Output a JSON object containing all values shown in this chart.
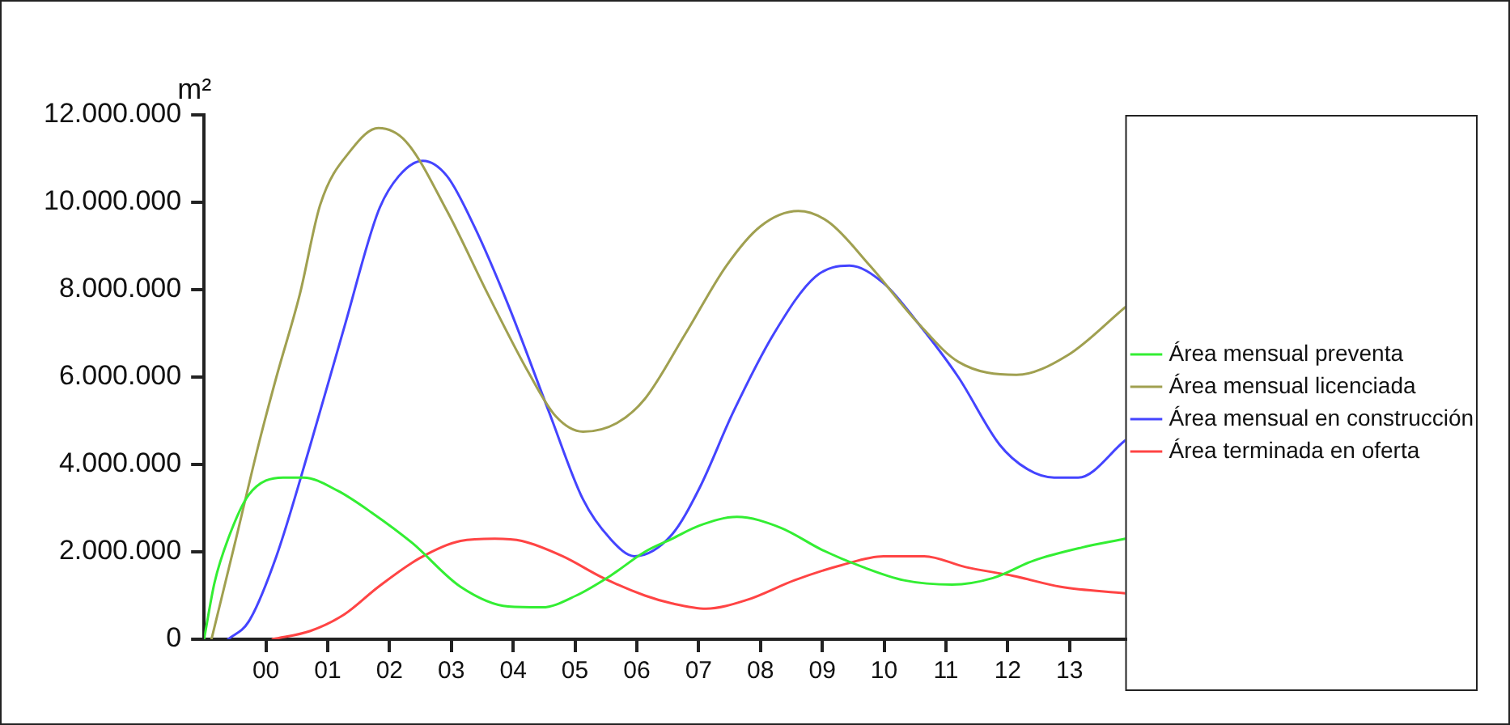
{
  "chart_data": {
    "type": "line",
    "ylabel": "m²",
    "xlim": [
      -1,
      13.9
    ],
    "ylim": [
      0,
      12000000
    ],
    "xticks": [
      {
        "value": 0,
        "label": "00"
      },
      {
        "value": 1,
        "label": "01"
      },
      {
        "value": 2,
        "label": "02"
      },
      {
        "value": 3,
        "label": "03"
      },
      {
        "value": 4,
        "label": "04"
      },
      {
        "value": 5,
        "label": "05"
      },
      {
        "value": 6,
        "label": "06"
      },
      {
        "value": 7,
        "label": "07"
      },
      {
        "value": 8,
        "label": "08"
      },
      {
        "value": 9,
        "label": "09"
      },
      {
        "value": 10,
        "label": "10"
      },
      {
        "value": 11,
        "label": "11"
      },
      {
        "value": 12,
        "label": "12"
      },
      {
        "value": 13,
        "label": "13"
      }
    ],
    "yticks": [
      0,
      {
        "value": 2000000,
        "label": "2.000.000"
      },
      {
        "value": 4000000,
        "label": "4.000.000"
      },
      {
        "value": 6000000,
        "label": "6.000.000"
      },
      {
        "value": 8000000,
        "label": "8.000.000"
      },
      {
        "value": 10000000,
        "label": "10.000.000"
      },
      {
        "value": 12000000,
        "label": "12.000.000"
      }
    ],
    "grid": false,
    "legend": "right",
    "marker": "none",
    "line_style": "solid",
    "series": [
      {
        "name": "Área mensual preventa",
        "color": "#33ee33",
        "x": [
          -1,
          -0.83,
          -0.61,
          -0.28,
          0.28,
          0.61,
          1.16,
          1.71,
          2.37,
          3.15,
          3.92,
          4.47,
          5.02,
          5.57,
          6.13,
          6.57,
          7.01,
          7.62,
          8.33,
          8.99,
          9.66,
          10.32,
          11.1,
          11.76,
          12.42,
          13.2,
          13.9
        ],
        "values": [
          0,
          1300000,
          2300000,
          3300000,
          3700000,
          3700000,
          3400000,
          2900000,
          2200000,
          1200000,
          750000,
          730000,
          1000000,
          1450000,
          2000000,
          2300000,
          2600000,
          2800000,
          2550000,
          2050000,
          1650000,
          1350000,
          1250000,
          1400000,
          1800000,
          2100000,
          2300000
        ]
      },
      {
        "name": "Área mensual licenciada",
        "color": "#a0a050",
        "x": [
          -0.88,
          -0.5,
          -0.11,
          0.17,
          0.55,
          0.88,
          1.38,
          1.82,
          2.26,
          2.93,
          3.59,
          4.25,
          4.69,
          5.13,
          5.68,
          6.13,
          6.79,
          7.45,
          8,
          8.61,
          9.1,
          9.77,
          10.54,
          11.2,
          12.14,
          12.97,
          13.9
        ],
        "values": [
          0,
          2200000,
          4500000,
          6000000,
          7900000,
          9950000,
          11200000,
          11700000,
          11400000,
          9800000,
          7900000,
          6100000,
          5100000,
          4750000,
          4950000,
          5500000,
          7000000,
          8550000,
          9450000,
          9800000,
          9550000,
          8550000,
          7250000,
          6350000,
          6050000,
          6500000,
          7600000
        ]
      },
      {
        "name": "Área mensual en construcción",
        "color": "#4444ff",
        "x": [
          -0.61,
          -0.28,
          0.17,
          0.72,
          1.27,
          1.82,
          2.15,
          2.54,
          2.93,
          3.37,
          3.92,
          4.58,
          5.13,
          5.57,
          5.96,
          6.57,
          7.01,
          7.56,
          8.22,
          8.89,
          9.44,
          9.99,
          10.54,
          11.2,
          11.87,
          12.31,
          12.75,
          13.14,
          13.9
        ],
        "values": [
          0,
          400000,
          1900000,
          4450000,
          7150000,
          9800000,
          10600000,
          10950000,
          10600000,
          9450000,
          7650000,
          5200000,
          3200000,
          2300000,
          1900000,
          2400000,
          3450000,
          5200000,
          7000000,
          8300000,
          8550000,
          8150000,
          7250000,
          6000000,
          4450000,
          3900000,
          3700000,
          3700000,
          4550000
        ]
      },
      {
        "name": "Área terminada en oferta",
        "color": "#ff4444",
        "x": [
          0.11,
          0.72,
          1.27,
          1.82,
          2.48,
          3.15,
          3.7,
          4.14,
          4.8,
          5.46,
          6.13,
          6.57,
          7.12,
          7.78,
          8.55,
          9.32,
          9.99,
          10.65,
          11.32,
          12.09,
          12.86,
          13.9
        ],
        "values": [
          0,
          190000,
          570000,
          1200000,
          1850000,
          2250000,
          2300000,
          2250000,
          1900000,
          1400000,
          1000000,
          820000,
          700000,
          900000,
          1350000,
          1700000,
          1900000,
          1900000,
          1650000,
          1450000,
          1200000,
          1050000
        ]
      }
    ]
  }
}
